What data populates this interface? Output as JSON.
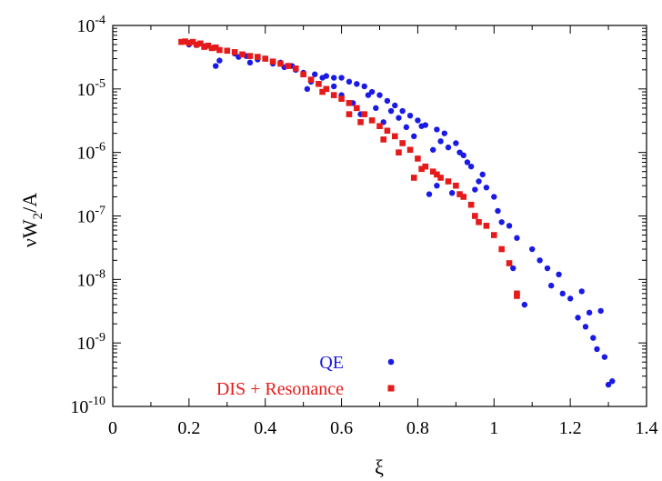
{
  "chart_data": {
    "type": "scatter",
    "xlabel": "ξ",
    "ylabel_main": "νW",
    "ylabel_sub": "2",
    "ylabel_tail": "/A",
    "xlim": [
      0,
      1.4
    ],
    "ylim": [
      1e-10,
      0.0001
    ],
    "yscale": "log",
    "grid": false,
    "legend_position": "bottom-center",
    "x_ticks": [
      "0",
      "0.2",
      "0.4",
      "0.6",
      "0.8",
      "1",
      "1.2",
      "1.4"
    ],
    "y_ticks": [
      {
        "base": "10",
        "exp": "-10"
      },
      {
        "base": "10",
        "exp": "-9"
      },
      {
        "base": "10",
        "exp": "-8"
      },
      {
        "base": "10",
        "exp": "-7"
      },
      {
        "base": "10",
        "exp": "-6"
      },
      {
        "base": "10",
        "exp": "-5"
      },
      {
        "base": "10",
        "exp": "-4"
      }
    ],
    "series": [
      {
        "name": "QE",
        "color": "#1a1ae6",
        "marker": "circle",
        "points": [
          [
            0.2,
            5e-05
          ],
          [
            0.22,
            4.9e-05
          ],
          [
            0.24,
            4.7e-05
          ],
          [
            0.26,
            4.4e-05
          ],
          [
            0.27,
            2.3e-05
          ],
          [
            0.28,
            2.8e-05
          ],
          [
            0.3,
            4e-05
          ],
          [
            0.32,
            3.6e-05
          ],
          [
            0.33,
            3.2e-05
          ],
          [
            0.35,
            3.3e-05
          ],
          [
            0.36,
            2.6e-05
          ],
          [
            0.38,
            2.9e-05
          ],
          [
            0.4,
            3e-05
          ],
          [
            0.42,
            2.5e-05
          ],
          [
            0.44,
            2.6e-05
          ],
          [
            0.45,
            2.2e-05
          ],
          [
            0.47,
            2.3e-05
          ],
          [
            0.48,
            2e-05
          ],
          [
            0.5,
            1.8e-05
          ],
          [
            0.51,
            1e-05
          ],
          [
            0.52,
            1.3e-05
          ],
          [
            0.53,
            1.7e-05
          ],
          [
            0.55,
            1.5e-05
          ],
          [
            0.56,
            1.6e-05
          ],
          [
            0.58,
            1.5e-05
          ],
          [
            0.58,
            1.1e-05
          ],
          [
            0.6,
            1.5e-05
          ],
          [
            0.6,
            8e-06
          ],
          [
            0.62,
            1.3e-05
          ],
          [
            0.63,
            6e-06
          ],
          [
            0.64,
            1.2e-05
          ],
          [
            0.65,
            4e-06
          ],
          [
            0.66,
            1.1e-05
          ],
          [
            0.67,
            8e-06
          ],
          [
            0.68,
            9e-06
          ],
          [
            0.69,
            5e-06
          ],
          [
            0.7,
            8e-06
          ],
          [
            0.71,
            3e-06
          ],
          [
            0.72,
            6.5e-06
          ],
          [
            0.73,
            4.5e-06
          ],
          [
            0.74,
            5.5e-06
          ],
          [
            0.75,
            3.5e-06
          ],
          [
            0.76,
            4.5e-06
          ],
          [
            0.77,
            2.5e-06
          ],
          [
            0.78,
            3.8e-06
          ],
          [
            0.79,
            1.8e-06
          ],
          [
            0.8,
            3.2e-06
          ],
          [
            0.81,
            2.6e-06
          ],
          [
            0.82,
            2.7e-06
          ],
          [
            0.83,
            2.2e-07
          ],
          [
            0.84,
            1.1e-06
          ],
          [
            0.85,
            2.3e-06
          ],
          [
            0.85,
            3e-07
          ],
          [
            0.86,
            1.5e-06
          ],
          [
            0.87,
            2e-06
          ],
          [
            0.88,
            1.2e-06
          ],
          [
            0.89,
            2.3e-07
          ],
          [
            0.9,
            1.4e-06
          ],
          [
            0.91,
            1e-06
          ],
          [
            0.92,
            9e-07
          ],
          [
            0.93,
            7e-07
          ],
          [
            0.94,
            6e-07
          ],
          [
            0.95,
            2.6e-07
          ],
          [
            0.96,
            3.5e-07
          ],
          [
            0.97,
            4.5e-07
          ],
          [
            0.98,
            2.8e-07
          ],
          [
            1.0,
            2e-07
          ],
          [
            1.01,
            1.2e-07
          ],
          [
            1.02,
            8e-08
          ],
          [
            1.04,
            7e-08
          ],
          [
            1.05,
            1.5e-08
          ],
          [
            1.06,
            4.5e-08
          ],
          [
            1.08,
            4e-09
          ],
          [
            1.1,
            3e-08
          ],
          [
            1.12,
            2e-08
          ],
          [
            1.14,
            1.5e-08
          ],
          [
            1.15,
            8e-09
          ],
          [
            1.17,
            1.2e-08
          ],
          [
            1.18,
            6e-09
          ],
          [
            1.2,
            5e-09
          ],
          [
            1.22,
            2.5e-09
          ],
          [
            1.23,
            6.5e-09
          ],
          [
            1.24,
            1.8e-09
          ],
          [
            1.25,
            3e-09
          ],
          [
            1.26,
            1.2e-09
          ],
          [
            1.27,
            8e-10
          ],
          [
            1.28,
            3.2e-09
          ],
          [
            1.29,
            6e-10
          ],
          [
            1.3,
            2.2e-10
          ],
          [
            1.31,
            2.5e-10
          ]
        ]
      },
      {
        "name": "DIS + Resonance",
        "color": "#e61a1a",
        "marker": "square",
        "points": [
          [
            0.18,
            5.5e-05
          ],
          [
            0.19,
            5.6e-05
          ],
          [
            0.2,
            5.3e-05
          ],
          [
            0.21,
            5.5e-05
          ],
          [
            0.22,
            5e-05
          ],
          [
            0.23,
            5.2e-05
          ],
          [
            0.24,
            4.6e-05
          ],
          [
            0.25,
            4.8e-05
          ],
          [
            0.26,
            4.4e-05
          ],
          [
            0.27,
            4.5e-05
          ],
          [
            0.28,
            4.1e-05
          ],
          [
            0.3,
            4e-05
          ],
          [
            0.32,
            3.8e-05
          ],
          [
            0.34,
            3.5e-05
          ],
          [
            0.36,
            3.3e-05
          ],
          [
            0.38,
            3.2e-05
          ],
          [
            0.4,
            3e-05
          ],
          [
            0.42,
            2.7e-05
          ],
          [
            0.44,
            2.5e-05
          ],
          [
            0.46,
            2.3e-05
          ],
          [
            0.48,
            2.1e-05
          ],
          [
            0.5,
            1.7e-05
          ],
          [
            0.52,
            1.4e-05
          ],
          [
            0.54,
            1.2e-05
          ],
          [
            0.55,
            9e-06
          ],
          [
            0.56,
            1e-05
          ],
          [
            0.58,
            8e-06
          ],
          [
            0.6,
            7e-06
          ],
          [
            0.62,
            6e-06
          ],
          [
            0.62,
            4e-06
          ],
          [
            0.64,
            5e-06
          ],
          [
            0.65,
            3e-06
          ],
          [
            0.66,
            4e-06
          ],
          [
            0.68,
            3.2e-06
          ],
          [
            0.7,
            2.6e-06
          ],
          [
            0.71,
            1.6e-06
          ],
          [
            0.72,
            2.2e-06
          ],
          [
            0.74,
            1.8e-06
          ],
          [
            0.75,
            1e-06
          ],
          [
            0.76,
            1.4e-06
          ],
          [
            0.78,
            1.1e-06
          ],
          [
            0.79,
            4e-07
          ],
          [
            0.8,
            8e-07
          ],
          [
            0.81,
            5.5e-07
          ],
          [
            0.82,
            6e-07
          ],
          [
            0.84,
            5e-07
          ],
          [
            0.85,
            4.5e-07
          ],
          [
            0.86,
            4e-07
          ],
          [
            0.88,
            3.5e-07
          ],
          [
            0.9,
            3e-07
          ],
          [
            0.91,
            2.2e-07
          ],
          [
            0.92,
            2e-07
          ],
          [
            0.94,
            1.5e-07
          ],
          [
            0.95,
            1e-07
          ],
          [
            0.96,
            8e-08
          ],
          [
            0.98,
            7e-08
          ],
          [
            1.0,
            5e-08
          ],
          [
            1.02,
            3e-08
          ],
          [
            1.04,
            1.8e-08
          ],
          [
            1.06,
            6e-09
          ],
          [
            1.06,
            5.5e-09
          ]
        ]
      }
    ]
  }
}
